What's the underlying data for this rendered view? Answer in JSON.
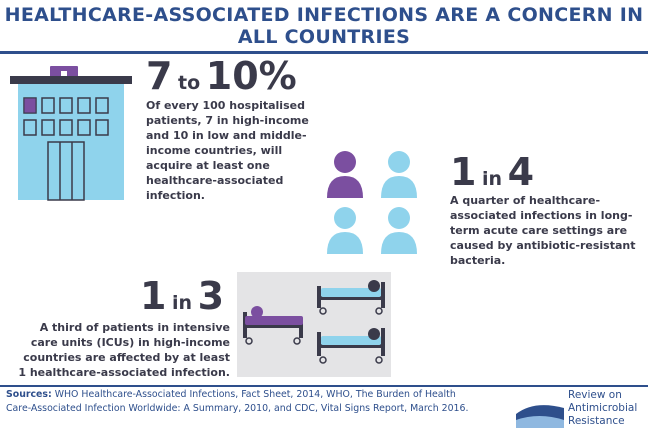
{
  "title": "HEALTHCARE-ASSOCIATED INFECTIONS ARE A CONCERN IN ALL COUNTRIES",
  "stats": [
    {
      "value_a": "7",
      "joiner": "to",
      "value_b": "10%",
      "description": "Of every 100 hospitalised patients, 7 in high-income and 10 in low and middle-income countries, will acquire at least one healthcare-associated infection."
    },
    {
      "value_a": "1",
      "joiner": "in",
      "value_b": "4",
      "description": "A quarter of healthcare-associated infections in long-term acute care settings are caused by antibiotic-resistant bacteria."
    },
    {
      "value_a": "1",
      "joiner": "in",
      "value_b": "3",
      "description": "A third of patients in intensive care units (ICUs) in high-income countries are affected by at least 1 healthcare-associated infection."
    }
  ],
  "footer": {
    "sources_label": "Sources:",
    "sources_text": " WHO Healthcare-Associated Infections, Fact Sheet, 2014, WHO, The Burden of Health Care-Associated Infection Worldwide:  A Summary, 2010, and CDC, Vital Signs Report, March 2016.",
    "logo_line1": "Review on",
    "logo_line2": "Antimicrobial",
    "logo_line3": "Resistance"
  },
  "colors": {
    "brand_blue": "#2e4f8c",
    "text_dark": "#3a3a4a",
    "light_blue": "#8fd3ec",
    "purple": "#7b4fa0",
    "gray_panel": "#e4e4e6"
  },
  "icons": [
    "hospital-icon",
    "people-icon",
    "hospital-beds-icon",
    "review-amr-logo"
  ]
}
